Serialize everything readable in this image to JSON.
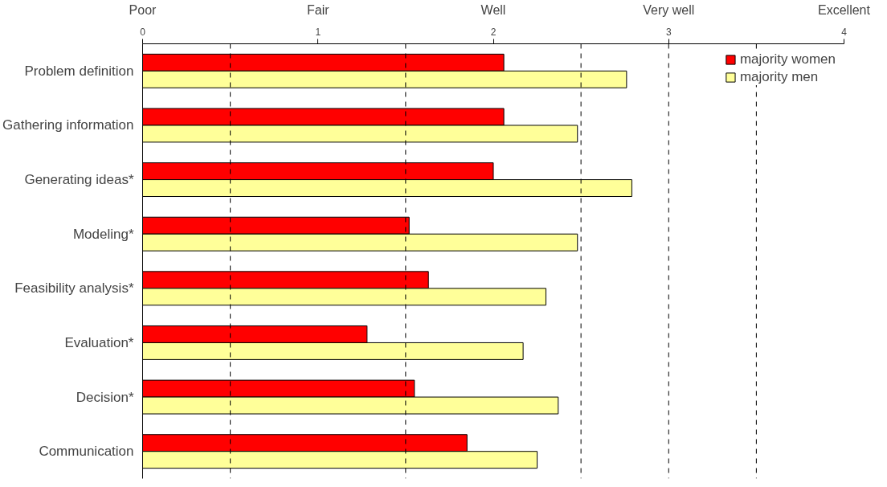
{
  "chart_data": {
    "type": "bar",
    "orientation": "horizontal",
    "categories": [
      "Problem definition",
      "Gathering information",
      "Generating ideas*",
      "Modeling*",
      "Feasibility analysis*",
      "Evaluation*",
      "Decision*",
      "Communication"
    ],
    "series": [
      {
        "name": "majority women",
        "color": "#ff0000",
        "values": [
          2.06,
          2.06,
          2.0,
          1.52,
          1.63,
          1.28,
          1.55,
          1.85
        ]
      },
      {
        "name": "majority men",
        "color": "#ffff99",
        "values": [
          2.76,
          2.48,
          2.79,
          2.48,
          2.3,
          2.17,
          2.37,
          2.25
        ]
      }
    ],
    "xlim": [
      0,
      4
    ],
    "xticks": [
      0,
      1,
      2,
      3,
      4
    ],
    "annotations": [
      "Poor",
      "Fair",
      "Well",
      "Very well",
      "Excellent"
    ],
    "ref_lines": [
      {
        "axis": "x",
        "value": 0.5,
        "color": "#000000",
        "line_style": "dashed"
      },
      {
        "axis": "x",
        "value": 1.5,
        "color": "#000000",
        "line_style": "dashed"
      },
      {
        "axis": "x",
        "value": 2.5,
        "color": "#000000",
        "line_style": "dashed"
      },
      {
        "axis": "x",
        "value": 3,
        "color": "#000000",
        "line_style": "dashed"
      },
      {
        "axis": "x",
        "value": 3.5,
        "color": "#000000",
        "line_style": "dashed"
      }
    ],
    "legend": "top right",
    "grid": false
  }
}
